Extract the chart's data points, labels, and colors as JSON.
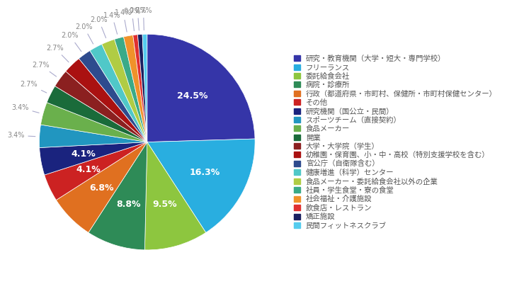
{
  "labels": [
    "研究・教育機関（大学・短大・専門学校）",
    "フリーランス",
    "委託給食会社",
    "病院・診療所",
    "行政（都道府県・市町村、保健所・市町村保健センター）",
    "その他",
    "研究機関（国公立・民間）",
    "スポーツチーム（直接契約）",
    "食品メーカー",
    "開業",
    "大学・大学院（学生）",
    "幼稚園・保育園、小・中・高校（特別支援学校を含む）",
    "官公庁（自衛隊含む）",
    "健康増進（科学）センター",
    "食品メーカー・委託給食会社以外の企業",
    "社員・学生食堂・寮の食堂",
    "社会福祉・介護施設",
    "飲食店・レストラン",
    "矯正施設",
    "民間フィットネスクラブ"
  ],
  "values": [
    24.5,
    16.3,
    9.5,
    8.8,
    6.8,
    4.1,
    4.1,
    3.4,
    3.4,
    2.7,
    2.7,
    2.7,
    2.0,
    2.0,
    2.0,
    1.4,
    1.4,
    0.7,
    0.7,
    0.7
  ],
  "colors": [
    "#3535a8",
    "#29aee0",
    "#8dc63f",
    "#2e8b57",
    "#e07020",
    "#cc2222",
    "#1a237e",
    "#2196c0",
    "#6ab04c",
    "#1a6b3a",
    "#8b2020",
    "#aa1111",
    "#2e4b8e",
    "#50c8c8",
    "#b0cc44",
    "#3aaa88",
    "#f0922a",
    "#e03030",
    "#1a2060",
    "#55ccee"
  ],
  "background_color": "#ffffff",
  "font_size_legend": 7.5,
  "font_size_autopct": 9,
  "large_threshold": 4.0
}
